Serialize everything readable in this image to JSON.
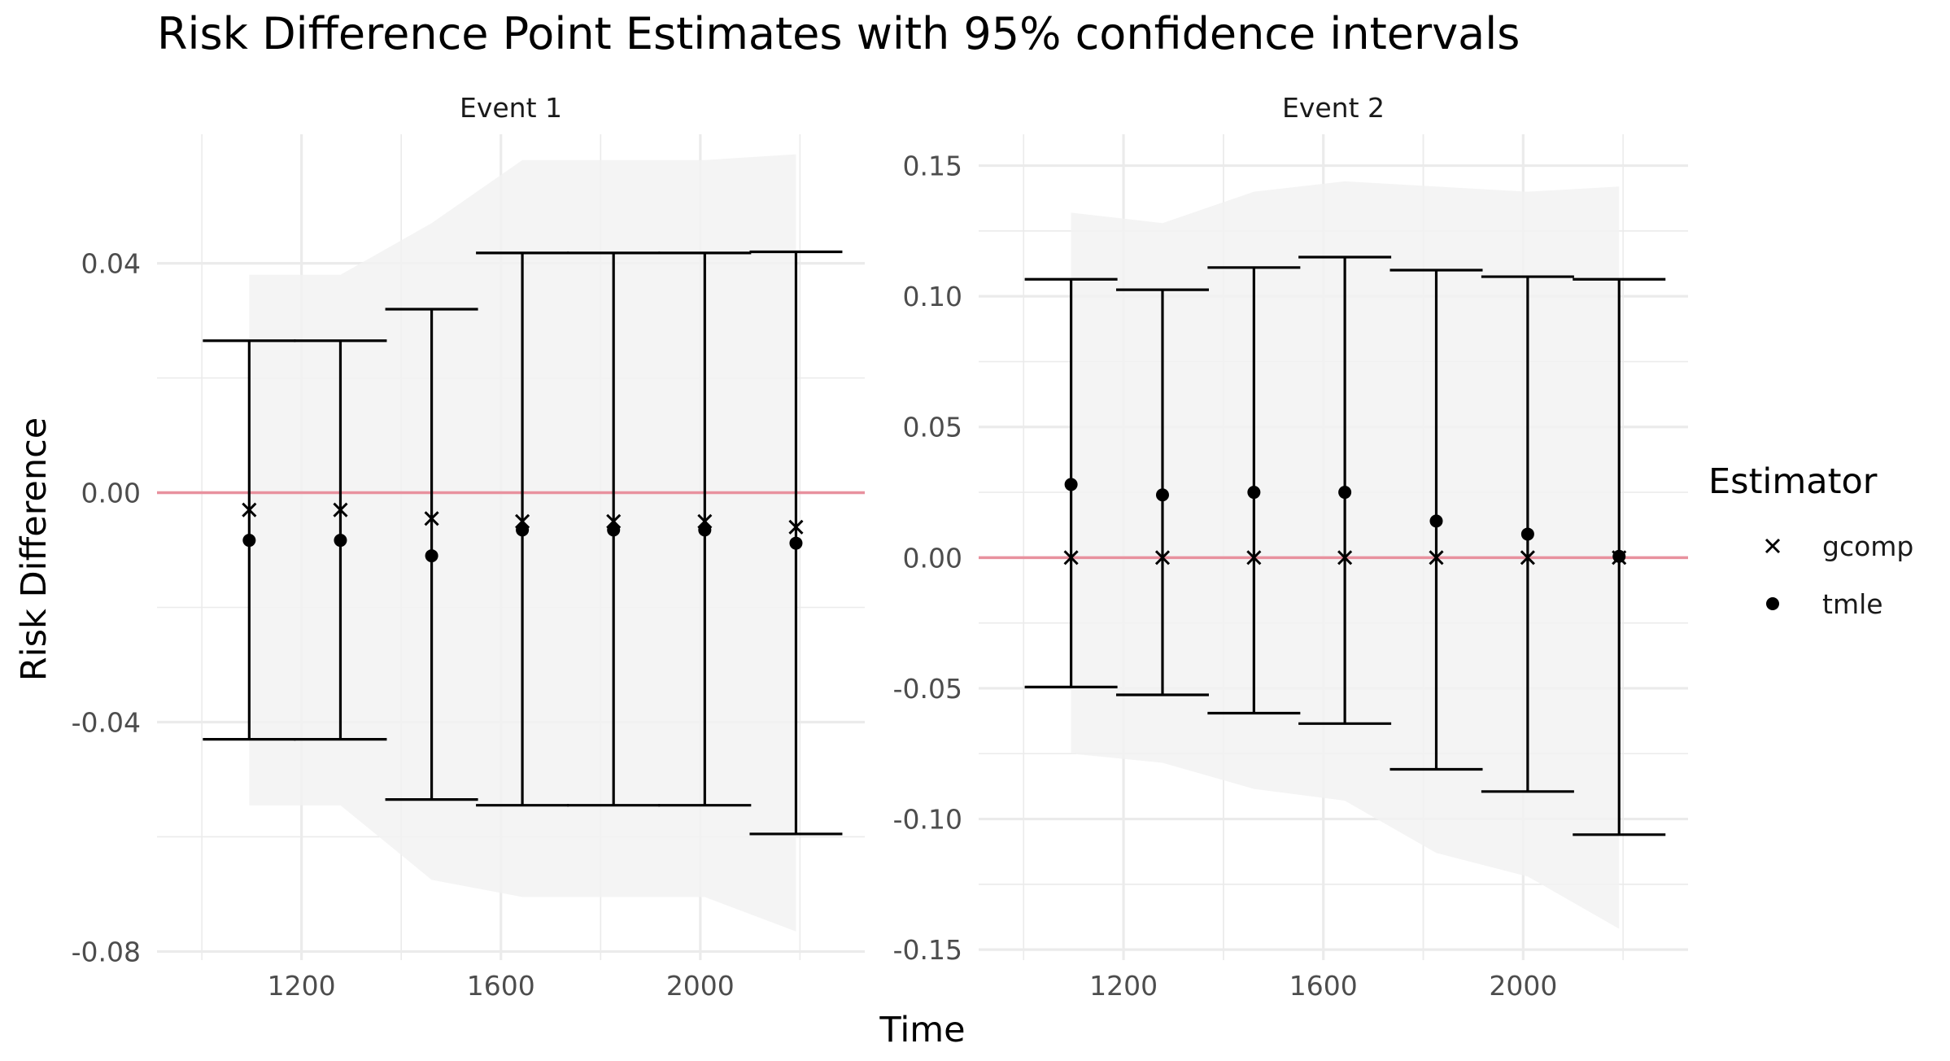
{
  "chart_data": {
    "type": "scatter",
    "title": "Risk Difference Point Estimates with 95% confidence intervals",
    "xlabel": "Time",
    "ylabel": "Risk Difference",
    "legend": {
      "title": "Estimator",
      "position": "right",
      "entries": [
        {
          "name": "gcomp",
          "marker": "cross"
        },
        {
          "name": "tmle",
          "marker": "dot"
        }
      ]
    },
    "reference_line": {
      "y": 0,
      "color": "#E8919E"
    },
    "colors": {
      "ribbon": "#F2F2F2",
      "grid": "#EBEBEB",
      "marks": "#000000",
      "reference": "#E8919E"
    },
    "grid": true,
    "facets": [
      {
        "strip": "Event 1",
        "x_ticks": [
          1200,
          1600,
          2000
        ],
        "x_tick_labels": [
          "1200",
          "1600",
          "2000"
        ],
        "y_ticks": [
          -0.08,
          -0.04,
          0.0,
          0.04
        ],
        "y_tick_labels": [
          "-0.08",
          "-0.04",
          "0.00",
          "0.04"
        ],
        "xlim": [
          910,
          2330
        ],
        "ylim": [
          -0.0815,
          0.0625
        ],
        "x": [
          1095,
          1278,
          1461,
          1643,
          1826,
          2009,
          2192
        ],
        "gcomp": [
          -0.003,
          -0.003,
          -0.0045,
          -0.005,
          -0.005,
          -0.005,
          -0.006
        ],
        "tmle": [
          -0.0083,
          -0.0083,
          -0.011,
          -0.0065,
          -0.0065,
          -0.0065,
          -0.0088
        ],
        "ci_lower": [
          -0.043,
          -0.043,
          -0.0535,
          -0.0545,
          -0.0545,
          -0.0545,
          -0.0595
        ],
        "ci_upper": [
          0.0265,
          0.0265,
          0.032,
          0.0418,
          0.0418,
          0.0418,
          0.042
        ],
        "ribbon_x": [
          1095,
          1278,
          1461,
          1643,
          1826,
          2009,
          2192
        ],
        "ribbon_upper": [
          0.038,
          0.038,
          0.047,
          0.058,
          0.058,
          0.058,
          0.059
        ],
        "ribbon_lower": [
          -0.0545,
          -0.0545,
          -0.0675,
          -0.0705,
          -0.0705,
          -0.0705,
          -0.0765
        ]
      },
      {
        "strip": "Event 2",
        "x_ticks": [
          1200,
          1600,
          2000
        ],
        "x_tick_labels": [
          "1200",
          "1600",
          "2000"
        ],
        "y_ticks": [
          -0.15,
          -0.1,
          -0.05,
          0.0,
          0.05,
          0.1,
          0.15
        ],
        "y_tick_labels": [
          "-0.15",
          "-0.10",
          "-0.05",
          "0.00",
          "0.05",
          "0.10",
          "0.15"
        ],
        "xlim": [
          910,
          2330
        ],
        "ylim": [
          -0.154,
          0.162
        ],
        "x": [
          1095,
          1278,
          1461,
          1643,
          1826,
          2009,
          2192
        ],
        "gcomp": [
          0,
          0,
          0,
          0,
          0,
          0,
          0
        ],
        "tmle": [
          0.028,
          0.024,
          0.025,
          0.025,
          0.014,
          0.009,
          0.0005
        ],
        "ci_lower": [
          -0.0495,
          -0.0525,
          -0.0595,
          -0.0635,
          -0.081,
          -0.0895,
          -0.106
        ],
        "ci_upper": [
          0.1065,
          0.1025,
          0.111,
          0.115,
          0.11,
          0.1075,
          0.1065
        ],
        "ribbon_x": [
          1095,
          1278,
          1461,
          1643,
          1826,
          2009,
          2192
        ],
        "ribbon_upper": [
          0.132,
          0.128,
          0.14,
          0.144,
          0.142,
          0.14,
          0.142
        ],
        "ribbon_lower": [
          -0.075,
          -0.0785,
          -0.0885,
          -0.093,
          -0.113,
          -0.122,
          -0.142
        ]
      }
    ]
  }
}
